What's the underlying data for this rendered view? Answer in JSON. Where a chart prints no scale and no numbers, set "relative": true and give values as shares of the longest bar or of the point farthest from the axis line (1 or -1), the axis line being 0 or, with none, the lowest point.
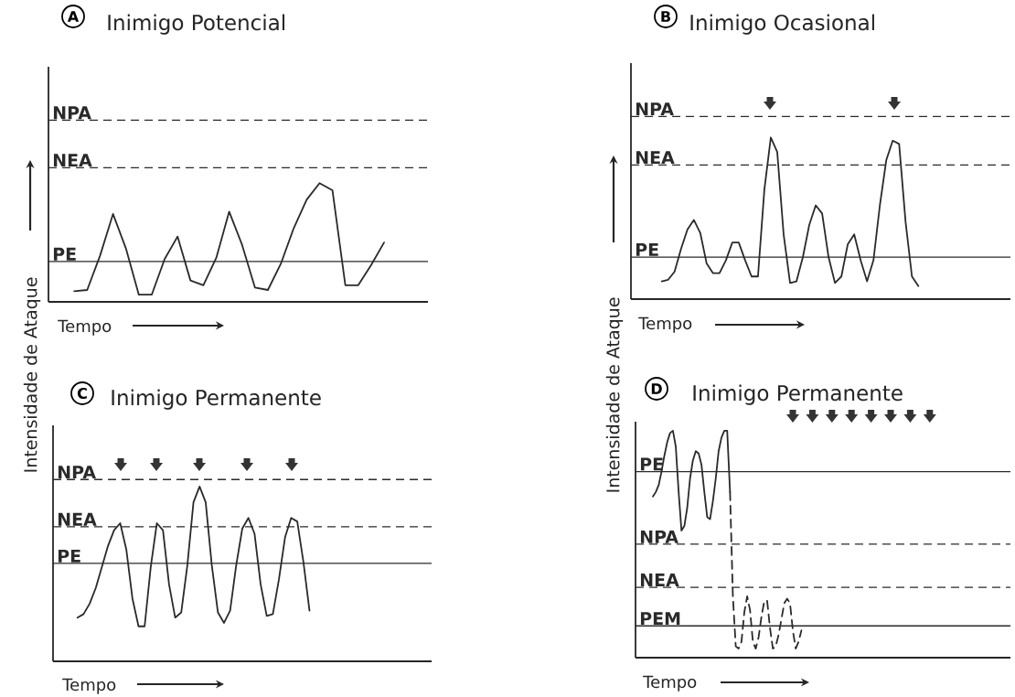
{
  "chart_data": [
    {
      "type": "line",
      "title": "Inimigo Potencial",
      "annotations": [
        "A"
      ],
      "xlabel": "Tempo",
      "ylabel": "Intensidade de Ataque",
      "relative": true,
      "categories": [
        null,
        null,
        null,
        null,
        null,
        null,
        null,
        null,
        null,
        null,
        null,
        null,
        null,
        null,
        null,
        null,
        null,
        null,
        null,
        null,
        null,
        null,
        null,
        null,
        null
      ],
      "series": [
        {
          "type": "line",
          "color": "#2a2a2a",
          "line_style": "solid",
          "values": [
            0.09,
            0.1,
            0.39,
            0.74,
            0.45,
            0.06,
            0.06,
            0.36,
            0.55,
            0.18,
            0.14,
            0.37,
            0.76,
            0.48,
            0.12,
            0.1,
            0.32,
            0.62,
            0.86,
            1.0,
            0.94,
            0.14,
            0.14,
            0.31,
            0.5
          ]
        }
      ],
      "ref_lines": [
        {
          "axis": "y",
          "value": 1.53,
          "label": "NPA",
          "line_style": "dashed",
          "color": "#2a2a2a"
        },
        {
          "axis": "y",
          "value": 1.13,
          "label": "NEA",
          "line_style": "dashed",
          "color": "#2a2a2a"
        },
        {
          "axis": "y",
          "value": 0.34,
          "label": "PE",
          "line_style": "solid",
          "color": "#2a2a2a"
        }
      ]
    },
    {
      "type": "line",
      "title": "Inimigo Ocasional",
      "annotations": [
        "B"
      ],
      "xlabel": "Tempo",
      "ylabel": "Intensidade de Ataque",
      "relative": true,
      "categories": [
        null,
        null,
        null,
        null,
        null,
        null,
        null,
        null,
        null,
        null,
        null,
        null,
        null,
        null,
        null,
        null,
        null,
        null,
        null,
        null,
        null,
        null,
        null,
        null,
        null,
        null,
        null,
        null,
        null,
        null,
        null,
        null,
        null,
        null,
        null,
        null,
        null,
        null,
        null,
        null,
        null
      ],
      "series": [
        {
          "type": "line",
          "color": "#2a2a2a",
          "line_style": "solid",
          "values": [
            0.11,
            0.12,
            0.17,
            0.31,
            0.43,
            0.49,
            0.41,
            0.22,
            0.16,
            0.16,
            0.24,
            0.35,
            0.35,
            0.24,
            0.14,
            0.14,
            0.68,
            1.0,
            0.91,
            0.4,
            0.1,
            0.11,
            0.26,
            0.46,
            0.58,
            0.53,
            0.26,
            0.1,
            0.14,
            0.34,
            0.4,
            0.24,
            0.11,
            0.24,
            0.58,
            0.86,
            0.98,
            0.96,
            0.48,
            0.14,
            0.08
          ]
        }
      ],
      "ref_lines": [
        {
          "axis": "y",
          "value": 1.13,
          "label": "NPA",
          "line_style": "dashed",
          "color": "#2a2a2a"
        },
        {
          "axis": "y",
          "value": 0.83,
          "label": "NEA",
          "line_style": "dashed",
          "color": "#2a2a2a"
        },
        {
          "axis": "y",
          "value": 0.26,
          "label": "PE",
          "line_style": "solid",
          "color": "#2a2a2a"
        }
      ]
    },
    {
      "type": "line",
      "title": "Inimigo Permanente",
      "annotations": [
        "C"
      ],
      "xlabel": "Tempo",
      "relative": true,
      "categories": [
        null,
        null,
        null,
        null,
        null,
        null,
        null,
        null,
        null,
        null,
        null,
        null,
        null,
        null,
        null,
        null,
        null,
        null,
        null,
        null,
        null,
        null,
        null,
        null,
        null,
        null,
        null,
        null,
        null,
        null,
        null,
        null,
        null,
        null,
        null,
        null,
        null,
        null,
        null
      ],
      "series": [
        {
          "type": "line",
          "color": "#2a2a2a",
          "line_style": "solid",
          "values": [
            0.25,
            0.27,
            0.33,
            0.42,
            0.54,
            0.66,
            0.75,
            0.79,
            0.64,
            0.36,
            0.2,
            0.2,
            0.54,
            0.79,
            0.75,
            0.44,
            0.25,
            0.28,
            0.55,
            0.91,
            1.0,
            0.91,
            0.55,
            0.28,
            0.22,
            0.29,
            0.55,
            0.76,
            0.82,
            0.73,
            0.44,
            0.26,
            0.27,
            0.47,
            0.71,
            0.82,
            0.8,
            0.57,
            0.29
          ]
        }
      ],
      "ref_lines": [
        {
          "axis": "y",
          "value": 1.04,
          "label": "NPA",
          "line_style": "dashed",
          "color": "#2a2a2a"
        },
        {
          "axis": "y",
          "value": 0.77,
          "label": "NEA",
          "line_style": "dashed",
          "color": "#2a2a2a"
        },
        {
          "axis": "y",
          "value": 0.56,
          "label": "PE",
          "line_style": "solid",
          "color": "#2a2a2a"
        }
      ]
    },
    {
      "type": "line",
      "title": "Inimigo Permanente",
      "annotations": [
        "D"
      ],
      "xlabel": "Tempo",
      "relative": true,
      "categories": [
        null,
        null,
        null,
        null,
        null,
        null,
        null,
        null,
        null,
        null,
        null,
        null,
        null,
        null,
        null,
        null,
        null,
        null,
        null,
        null,
        null,
        null,
        null,
        null,
        null,
        null,
        null,
        null,
        null,
        null,
        null,
        null,
        null,
        null,
        null,
        null,
        null,
        null,
        null,
        null,
        null,
        null,
        null,
        null,
        null,
        null,
        null,
        null,
        null,
        null,
        null,
        null,
        null,
        null,
        null
      ],
      "series": [
        {
          "type": "line",
          "color": "#2a2a2a",
          "line_style": "solid",
          "values": [
            0.71,
            0.73,
            0.76,
            0.82,
            0.89,
            0.95,
            0.99,
            1.0,
            0.93,
            0.73,
            0.56,
            0.58,
            0.66,
            0.79,
            0.87,
            0.91,
            0.9,
            0.85,
            0.73,
            0.62,
            0.61,
            0.69,
            0.79,
            0.91,
            0.97,
            1.0,
            1.0,
            0.73,
            null,
            null,
            null,
            null,
            null,
            null,
            null,
            null,
            null,
            null,
            null,
            null,
            null,
            null,
            null,
            null,
            null,
            null,
            null,
            null,
            null,
            null,
            null,
            null,
            null,
            null,
            null
          ]
        },
        {
          "type": "line",
          "color": "#2a2a2a",
          "line_style": "dashed",
          "values": [
            null,
            null,
            null,
            null,
            null,
            null,
            null,
            null,
            null,
            null,
            null,
            null,
            null,
            null,
            null,
            null,
            null,
            null,
            null,
            null,
            null,
            null,
            null,
            null,
            null,
            null,
            null,
            0.73,
            0.27,
            0.05,
            0.04,
            0.07,
            0.2,
            0.27,
            0.21,
            0.07,
            0.04,
            0.09,
            0.18,
            0.25,
            0.25,
            0.13,
            0.04,
            0.05,
            0.1,
            0.17,
            0.24,
            0.26,
            0.24,
            0.12,
            0.04,
            0.07,
            0.12,
            null,
            null
          ]
        }
      ],
      "ref_lines": [
        {
          "axis": "y",
          "value": 0.82,
          "label": "PE",
          "line_style": "solid",
          "color": "#2a2a2a"
        },
        {
          "axis": "y",
          "value": 0.5,
          "label": "NPA",
          "line_style": "dashed",
          "color": "#2a2a2a"
        },
        {
          "axis": "y",
          "value": 0.31,
          "label": "NEA",
          "line_style": "dashed",
          "color": "#2a2a2a"
        },
        {
          "axis": "y",
          "value": 0.14,
          "label": "PEM",
          "line_style": "solid",
          "color": "#2a2a2a"
        }
      ]
    }
  ]
}
